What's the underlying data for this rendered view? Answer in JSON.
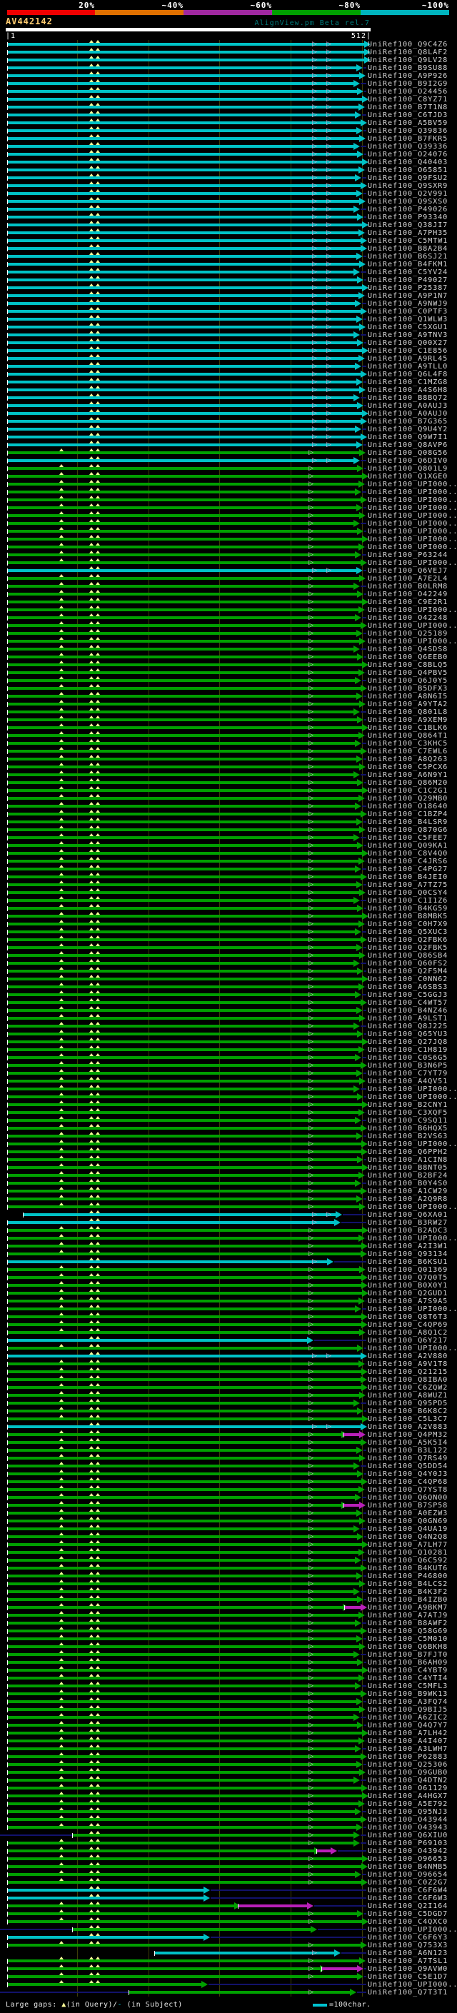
{
  "header": {
    "query_name": "AV442142",
    "watermark": "AlignView.pm Beta rel.7",
    "scale": {
      "labels": [
        "20%",
        "~40%",
        "~60%",
        "~80%",
        "~100%"
      ],
      "boundaries": [
        133,
        257,
        381,
        505,
        629
      ],
      "segments": [
        {
          "from": 10,
          "to": 133,
          "color": "#f00000"
        },
        {
          "from": 133,
          "to": 257,
          "color": "#e07000"
        },
        {
          "from": 257,
          "to": 381,
          "color": "#a028a0"
        },
        {
          "from": 381,
          "to": 505,
          "color": "#00a000"
        },
        {
          "from": 505,
          "to": 629,
          "color": "#00b4be"
        }
      ]
    },
    "ruler": {
      "start_label": "|1",
      "end_label": "512|",
      "query_length": 512,
      "tick_x": [
        108,
        208,
        307,
        407,
        507
      ]
    }
  },
  "legend": {
    "large_gaps_label": "Large gaps: ",
    "query_gap_symbol": "▲",
    "query_gap_text": "(in Query)/",
    "subject_gap_symbol": "-",
    "subject_gap_text": " (in Subject)",
    "scale_text": "=100char."
  },
  "colors": {
    "background": "#000000",
    "bar": {
      "c": "#00c2c6",
      "g": "#00a000",
      "m": "#b820b8",
      "n": "#12126b"
    },
    "gap_marker": "#ffff99",
    "gridline": "#3d3d08",
    "label_text": "#d8d8d8"
  },
  "chart_data": {
    "type": "alignment_overview",
    "title": "AlignView.pm Beta rel.7",
    "query": "AV442142",
    "query_length": 512,
    "x_axis": {
      "start": 1,
      "end": 512,
      "ticks": [
        100,
        200,
        300,
        400,
        500
      ],
      "pixels_per_char": 1
    },
    "identity_scale": [
      {
        "label": "20%",
        "color": "#f00000"
      },
      {
        "label": "~40%",
        "color": "#e07000"
      },
      {
        "label": "~60%",
        "color": "#a028a0"
      },
      {
        "label": "~80%",
        "color": "#00a000"
      },
      {
        "label": "~100%",
        "color": "#00b4be"
      }
    ],
    "label_prefix": "UniRef100_",
    "end_cycle": [
      502,
      497,
      505,
      499,
      503,
      495,
      500,
      507
    ],
    "markers": {
      "query_gap_x_cyan": [
        128,
        137
      ],
      "query_gap_x_green": [
        86,
        128,
        137
      ],
      "open_arrow_x_cyan": [
        437,
        457
      ],
      "open_arrow_x_green": [
        432
      ]
    },
    "hits": [
      [
        "Q9C4Z6",
        "c",
        510
      ],
      [
        "Q8LAF2",
        "c",
        510
      ],
      [
        "Q9LV28",
        "c",
        510
      ],
      [
        "B9SU88",
        "c"
      ],
      [
        "A9P926",
        "c"
      ],
      [
        "B9I2G9",
        "c"
      ],
      [
        "O24456",
        "c"
      ],
      [
        "C8YZ71",
        "c"
      ],
      [
        "B7T1N8",
        "c"
      ],
      [
        "C6TJD3",
        "c"
      ],
      [
        "A5BV59",
        "c"
      ],
      [
        "Q39836",
        "c"
      ],
      [
        "B7FKR5",
        "c"
      ],
      [
        "Q39336",
        "c"
      ],
      [
        "O24076",
        "c"
      ],
      [
        "Q40403",
        "c"
      ],
      [
        "O65851",
        "c"
      ],
      [
        "Q9FSU2",
        "c"
      ],
      [
        "Q9SXR9",
        "c"
      ],
      [
        "Q2V991",
        "c"
      ],
      [
        "Q9SXS0",
        "c"
      ],
      [
        "P49026",
        "c"
      ],
      [
        "P93340",
        "c"
      ],
      [
        "Q38JI7",
        "c"
      ],
      [
        "A7PH35",
        "c"
      ],
      [
        "C5MTW1",
        "c",
        505
      ],
      [
        "B8A2B4",
        "c"
      ],
      [
        "B6SJ21",
        "c"
      ],
      [
        "B4FKM1",
        "c"
      ],
      [
        "C5YV24",
        "c"
      ],
      [
        "P49027",
        "c"
      ],
      [
        "P25387",
        "c"
      ],
      [
        "A9P1N7",
        "c"
      ],
      [
        "A9NWJ9",
        "c"
      ],
      [
        "C0PTF3",
        "c"
      ],
      [
        "Q1WLW3",
        "c"
      ],
      [
        "C5XGU1",
        "c"
      ],
      [
        "A9TNV3",
        "c"
      ],
      [
        "Q00X27",
        "c"
      ],
      [
        "C1E856",
        "c"
      ],
      [
        "A9RL45",
        "c"
      ],
      [
        "A9TLL0",
        "c"
      ],
      [
        "Q6L4F8",
        "c"
      ],
      [
        "C1MZG8",
        "c"
      ],
      [
        "A4S6H8",
        "c"
      ],
      [
        "B8BQ72",
        "c"
      ],
      [
        "A0AUJ3",
        "c"
      ],
      [
        "A0AUJ0",
        "c"
      ],
      [
        "B7G365",
        "c",
        505
      ],
      [
        "Q9U4Y2",
        "c"
      ],
      [
        "Q9W7I1",
        "c"
      ],
      [
        "Q8AVP6",
        "c"
      ],
      [
        "Q08G56",
        "g"
      ],
      [
        "Q6DIV0",
        "c"
      ],
      [
        "Q801L9",
        "g"
      ],
      [
        "Q1XGE0",
        "g"
      ],
      [
        "UPI000..",
        "g"
      ],
      [
        "UPI000..",
        "g"
      ],
      [
        "UPI000..",
        "g"
      ],
      [
        "UPI000..",
        "g"
      ],
      [
        "UPI000..",
        "g"
      ],
      [
        "UPI000..",
        "g"
      ],
      [
        "UPI000..",
        "g"
      ],
      [
        "UPI000..",
        "g"
      ],
      [
        "UPI000..",
        "g"
      ],
      [
        "P63244",
        "g"
      ],
      [
        "UPI000..",
        "g"
      ],
      [
        "Q6VEJ7",
        "c"
      ],
      [
        "A7E2L4",
        "g"
      ],
      [
        "B0LRM8",
        "g"
      ],
      [
        "O42249",
        "g"
      ],
      [
        "C9E2R1",
        "g"
      ],
      [
        "UPI000..",
        "g"
      ],
      [
        "O42248",
        "g"
      ],
      [
        "UPI000..",
        "g"
      ],
      [
        "Q25189",
        "g"
      ],
      [
        "UPI000..",
        "g"
      ],
      [
        "Q4SDS8",
        "g"
      ],
      [
        "Q6EEB0",
        "g"
      ],
      [
        "C8BLQ5",
        "g"
      ],
      [
        "Q4PBV5",
        "g"
      ],
      [
        "Q6J0Y5",
        "g"
      ],
      [
        "B5DFX3",
        "g"
      ],
      [
        "A8N6I5",
        "g"
      ],
      [
        "A9YTA2",
        "g"
      ],
      [
        "Q801L8",
        "g"
      ],
      [
        "A9XEM9",
        "g"
      ],
      [
        "C1BLK6",
        "g"
      ],
      [
        "Q864T1",
        "g"
      ],
      [
        "C3KHC5",
        "g"
      ],
      [
        "C7EWL6",
        "g"
      ],
      [
        "A8Q263",
        "g"
      ],
      [
        "C5PCX6",
        "g"
      ],
      [
        "A6N9Y1",
        "g"
      ],
      [
        "Q86M20",
        "g"
      ],
      [
        "C1C2G1",
        "g"
      ],
      [
        "Q29MB0",
        "g"
      ],
      [
        "O18640",
        "g"
      ],
      [
        "C1BZP4",
        "g"
      ],
      [
        "B4LSR9",
        "g"
      ],
      [
        "Q870G6",
        "g"
      ],
      [
        "C5FEE7",
        "g"
      ],
      [
        "Q09KA1",
        "g"
      ],
      [
        "C8V4Q0",
        "g"
      ],
      [
        "C4JRS6",
        "g"
      ],
      [
        "C4PG27",
        "g"
      ],
      [
        "B4JEI0",
        "g"
      ],
      [
        "A7TZ75",
        "g"
      ],
      [
        "Q0CSY4",
        "g"
      ],
      [
        "C1I1Z6",
        "g"
      ],
      [
        "B4KG59",
        "g"
      ],
      [
        "B8MBK5",
        "g"
      ],
      [
        "C0H7X9",
        "g"
      ],
      [
        "Q5XUC3",
        "g"
      ],
      [
        "Q2FBK6",
        "g"
      ],
      [
        "Q2FBK5",
        "g"
      ],
      [
        "Q86SB4",
        "g"
      ],
      [
        "Q60FS2",
        "g"
      ],
      [
        "Q2F5M4",
        "g"
      ],
      [
        "C0NN62",
        "g"
      ],
      [
        "A6SBS3",
        "g"
      ],
      [
        "C5GGJ3",
        "g"
      ],
      [
        "C4WT57",
        "g"
      ],
      [
        "B4NZ46",
        "g"
      ],
      [
        "A9LST1",
        "g"
      ],
      [
        "Q8J225",
        "g"
      ],
      [
        "Q65YU3",
        "g"
      ],
      [
        "Q27JQ8",
        "g"
      ],
      [
        "C1H819",
        "g"
      ],
      [
        "C0S6G5",
        "g"
      ],
      [
        "B3N6P5",
        "g"
      ],
      [
        "C7YT79",
        "g"
      ],
      [
        "A4QV51",
        "g"
      ],
      [
        "UPI000..",
        "g"
      ],
      [
        "UPI000..",
        "g"
      ],
      [
        "B2CNY1",
        "g"
      ],
      [
        "C3XQF5",
        "g"
      ],
      [
        "C9SQ11",
        "g"
      ],
      [
        "B6HQX5",
        "g"
      ],
      [
        "B2VS63",
        "g"
      ],
      [
        "UPI000..",
        "g",
        506
      ],
      [
        "Q6PPH2",
        "g",
        506
      ],
      [
        "A1CIN8",
        "g"
      ],
      [
        "B8NT05",
        "g"
      ],
      [
        "B2BF24",
        "g"
      ],
      [
        "B0Y4S0",
        "g"
      ],
      [
        "A1CW29",
        "g"
      ],
      [
        "A2Q9R8",
        "g"
      ],
      [
        "UPI000..",
        "g"
      ],
      [
        "Q6XA01",
        "x",
        [
          [
            32,
            470,
            "c"
          ]
        ]
      ],
      [
        "B3RW27",
        "c",
        468
      ],
      [
        "B2ADC3",
        "g"
      ],
      [
        "UPI000..",
        "g"
      ],
      [
        "A2I3W1",
        "g",
        506
      ],
      [
        "Q93134",
        "g"
      ],
      [
        "B6KSU1",
        "c",
        458
      ],
      [
        "Q01369",
        "g"
      ],
      [
        "Q7Q0T5",
        "g",
        506
      ],
      [
        "B0X0Y1",
        "g",
        506
      ],
      [
        "Q2GUD1",
        "g"
      ],
      [
        "A7S9A5",
        "g"
      ],
      [
        "UPI000..",
        "g"
      ],
      [
        "Q8T6T3",
        "g",
        506
      ],
      [
        "C4QP69",
        "g",
        506
      ],
      [
        "A8Q1C2",
        "g"
      ],
      [
        "Q6Y217",
        "c",
        430
      ],
      [
        "UPI000..",
        "g"
      ],
      [
        "A2V880",
        "c",
        505
      ],
      [
        "A9V1T8",
        "g"
      ],
      [
        "Q21215",
        "g",
        506
      ],
      [
        "Q8IBA0",
        "g"
      ],
      [
        "C6ZQW2",
        "g",
        506
      ],
      [
        "A8WUZ1",
        "g"
      ],
      [
        "Q95PD5",
        "g"
      ],
      [
        "B6K8C2",
        "g"
      ],
      [
        "C5L3C7",
        "g"
      ],
      [
        "A2V883",
        "c",
        505
      ],
      [
        "Q4PM32",
        "x",
        [
          [
            10,
            478,
            "g"
          ],
          [
            480,
            503,
            "m"
          ]
        ]
      ],
      [
        "A5K5I4",
        "g"
      ],
      [
        "B3L122",
        "g"
      ],
      [
        "Q7RS49",
        "g"
      ],
      [
        "Q5DD54",
        "g"
      ],
      [
        "Q4Y0J3",
        "g"
      ],
      [
        "C4QP68",
        "g",
        506
      ],
      [
        "Q7YST8",
        "g"
      ],
      [
        "Q6QN00",
        "g"
      ],
      [
        "B7SP58",
        "x",
        [
          [
            10,
            478,
            "g"
          ],
          [
            480,
            503,
            "m"
          ]
        ]
      ],
      [
        "A0EZW3",
        "g"
      ],
      [
        "Q0GN69",
        "g"
      ],
      [
        "Q4UA19",
        "g"
      ],
      [
        "Q4N2Q8",
        "g"
      ],
      [
        "A7LH77",
        "g"
      ],
      [
        "Q10281",
        "g"
      ],
      [
        "Q6C592",
        "g"
      ],
      [
        "B4KUT6",
        "g"
      ],
      [
        "P46800",
        "g"
      ],
      [
        "B4LCS2",
        "g"
      ],
      [
        "B4K3F2",
        "g"
      ],
      [
        "B4IZB0",
        "g"
      ],
      [
        "A9BKM7",
        "x",
        [
          [
            10,
            480,
            "g"
          ],
          [
            482,
            505,
            "m"
          ]
        ]
      ],
      [
        "A7ATJ9",
        "g"
      ],
      [
        "B8AWF2",
        "g"
      ],
      [
        "Q58G69",
        "g"
      ],
      [
        "C5M010",
        "g"
      ],
      [
        "Q6BKH8",
        "g"
      ],
      [
        "B7FJT0",
        "g"
      ],
      [
        "B6AH09",
        "g"
      ],
      [
        "C4YBT9",
        "g"
      ],
      [
        "C4YTI4",
        "g"
      ],
      [
        "C5MFL3",
        "g"
      ],
      [
        "B9WK13",
        "g"
      ],
      [
        "A3FQ74",
        "g"
      ],
      [
        "Q9BIJ5",
        "g"
      ],
      [
        "A6ZIC2",
        "g"
      ],
      [
        "Q4Q7Y7",
        "g"
      ],
      [
        "A7LH42",
        "g"
      ],
      [
        "A4I407",
        "g"
      ],
      [
        "A3LWH7",
        "g"
      ],
      [
        "P62883",
        "g"
      ],
      [
        "Q25306",
        "g"
      ],
      [
        "Q9GUB0",
        "g"
      ],
      [
        "Q4DTN2",
        "g"
      ],
      [
        "O61129",
        "g",
        506
      ],
      [
        "A4HGX7",
        "g"
      ],
      [
        "A5E792",
        "g"
      ],
      [
        "Q95NJ3",
        "g"
      ],
      [
        "O43944",
        "g"
      ],
      [
        "O43943",
        "g"
      ],
      [
        "Q6XIU0",
        "x",
        [
          [
            0,
            101,
            "n"
          ],
          [
            101,
            495,
            "g"
          ]
        ]
      ],
      [
        "P69103",
        "g"
      ],
      [
        "O43942",
        "x",
        [
          [
            10,
            440,
            "g"
          ],
          [
            443,
            463,
            "m"
          ]
        ]
      ],
      [
        "O96653",
        "g"
      ],
      [
        "B4NMB5",
        "g",
        506
      ],
      [
        "O96654",
        "g"
      ],
      [
        "C0Z2G7",
        "g",
        506
      ],
      [
        "C6F6W4",
        "c",
        285
      ],
      [
        "C6F6W3",
        "c",
        285
      ],
      [
        "Q2I164",
        "x",
        [
          [
            10,
            328,
            "g"
          ],
          [
            333,
            430,
            "m"
          ]
        ]
      ],
      [
        "C5DGD7",
        "g"
      ],
      [
        "C4QXC0",
        "g"
      ],
      [
        "UPI000..",
        "x",
        [
          [
            0,
            101,
            "n"
          ],
          [
            101,
            435,
            "g"
          ]
        ]
      ],
      [
        "C6F6Y3",
        "c",
        285
      ],
      [
        "Q753X3",
        "g"
      ],
      [
        "A6N123",
        "x",
        [
          [
            216,
            468,
            "c"
          ]
        ]
      ],
      [
        "A7TSL1",
        "g"
      ],
      [
        "Q9AVW0",
        "x",
        [
          [
            10,
            448,
            "g"
          ],
          [
            450,
            500,
            "m"
          ]
        ]
      ],
      [
        "C5E1D7",
        "g"
      ],
      [
        "UPI000..",
        "g",
        282
      ],
      [
        "Q7T3T1",
        "x",
        [
          [
            0,
            180,
            "n"
          ],
          [
            180,
            490,
            "g"
          ]
        ]
      ]
    ]
  }
}
